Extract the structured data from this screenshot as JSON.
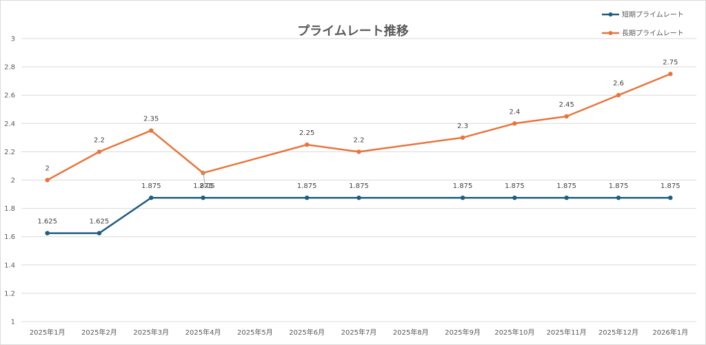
{
  "chart_data": {
    "type": "line",
    "title": "プライムレート推移",
    "xlabel": "",
    "ylabel": "",
    "categories": [
      "2025年1月",
      "2025年2月",
      "2025年3月",
      "2025年4月",
      "2025年5月",
      "2025年6月",
      "2025年7月",
      "2025年8月",
      "2025年9月",
      "2025年10月",
      "2025年11月",
      "2025年12月",
      "2026年1月"
    ],
    "ylim": [
      1,
      3
    ],
    "yticks": [
      "1",
      "1.2",
      "1.4",
      "1.6",
      "1.8",
      "2",
      "2.2",
      "2.4",
      "2.6",
      "2.8",
      "3"
    ],
    "grid": true,
    "legend_position": "top-right",
    "series": [
      {
        "name": "短期プライムレート",
        "color": "#1f5c7f",
        "values": [
          1.625,
          1.625,
          1.875,
          1.875,
          null,
          1.875,
          1.875,
          null,
          1.875,
          1.875,
          1.875,
          1.875,
          1.875
        ],
        "labels": [
          "1.625",
          "1.625",
          "1.875",
          "1.875",
          "",
          "1.875",
          "1.875",
          "",
          "1.875",
          "1.875",
          "1.875",
          "1.875",
          "1.875"
        ]
      },
      {
        "name": "長期プライムレート",
        "color": "#e8743b",
        "values": [
          2,
          2.2,
          2.35,
          2.05,
          null,
          2.25,
          2.2,
          null,
          2.3,
          2.4,
          2.45,
          2.6,
          2.75
        ],
        "labels": [
          "2",
          "2.2",
          "2.35",
          "2.05",
          "",
          "2.25",
          "2.2",
          "",
          "2.3",
          "2.4",
          "2.45",
          "2.6",
          "2.75"
        ]
      }
    ]
  }
}
